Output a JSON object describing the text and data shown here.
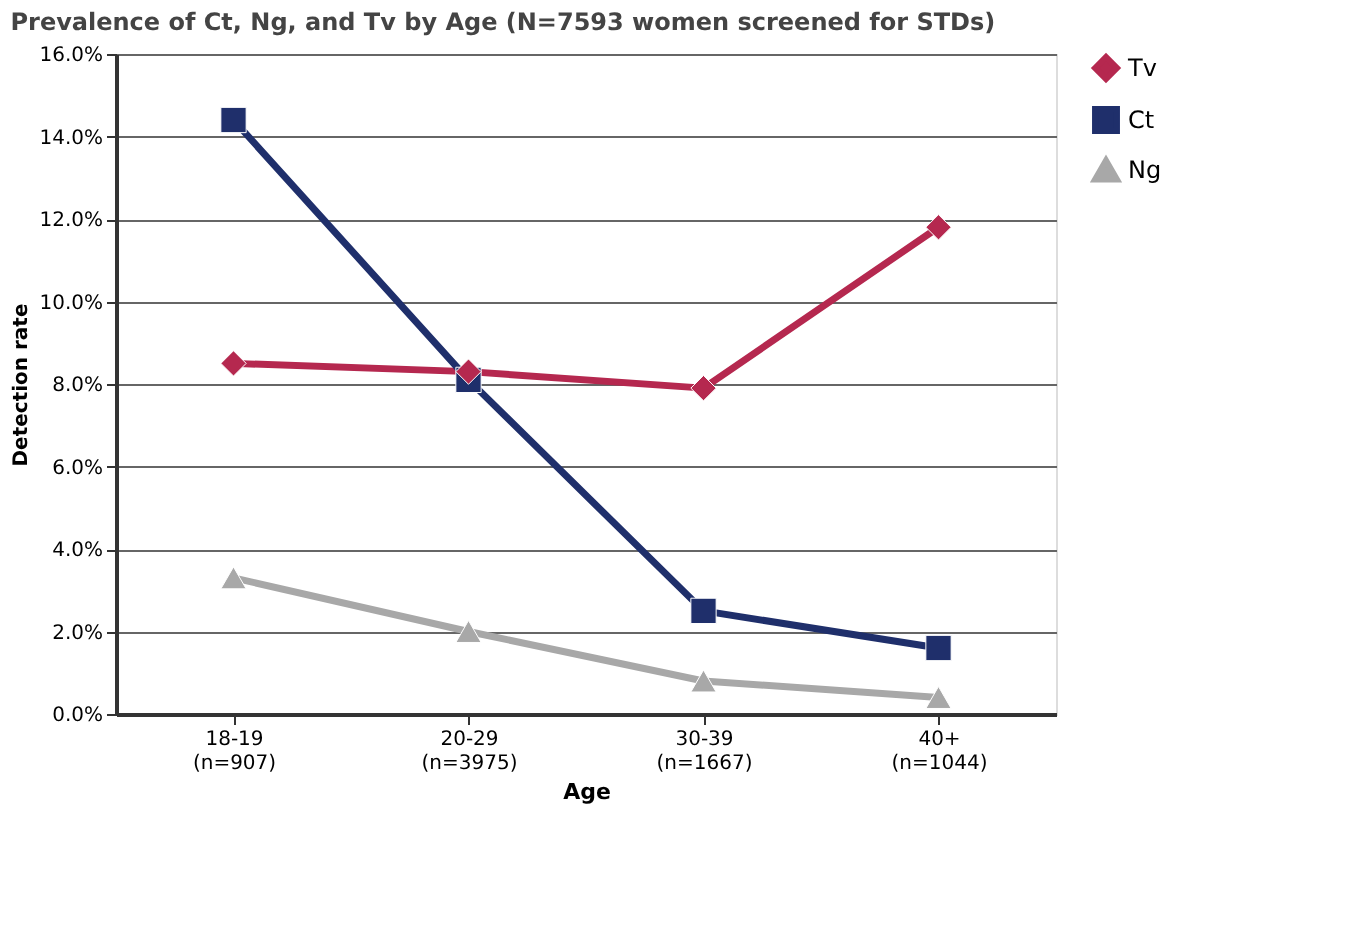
{
  "chart_data": {
    "type": "line",
    "title": "Prevalence of Ct, Ng, and Tv by Age (N=7593 women screened for STDs)",
    "xlabel": "Age",
    "ylabel": "Detection rate",
    "categories": [
      "18-19\n(n=907)",
      "20-29\n(n=3975)",
      "30-39\n(n=1667)",
      "40+\n(n=1044)"
    ],
    "series": [
      {
        "name": "Tv",
        "color": "#b5284f",
        "marker": "diamond",
        "values": [
          8.5,
          8.3,
          7.9,
          11.8
        ]
      },
      {
        "name": "Ct",
        "color": "#1f2f6b",
        "marker": "square",
        "values": [
          14.4,
          8.1,
          2.5,
          1.6
        ]
      },
      {
        "name": "Ng",
        "color": "#a8a8a8",
        "marker": "triangle",
        "values": [
          3.3,
          2.0,
          0.8,
          0.4
        ]
      }
    ],
    "ylim": [
      0,
      16
    ],
    "yticks": [
      {
        "value": 0,
        "label": "0.0%"
      },
      {
        "value": 2,
        "label": "2.0%"
      },
      {
        "value": 4,
        "label": "4.0%"
      },
      {
        "value": 6,
        "label": "6.0%"
      },
      {
        "value": 8,
        "label": "8.0%"
      },
      {
        "value": 10,
        "label": "10.0%"
      },
      {
        "value": 12,
        "label": "12.0%"
      },
      {
        "value": 14,
        "label": "14.0%"
      },
      {
        "value": 16,
        "label": "16.0%"
      }
    ],
    "grid": "y",
    "legend": "right",
    "line_style": "solid"
  }
}
